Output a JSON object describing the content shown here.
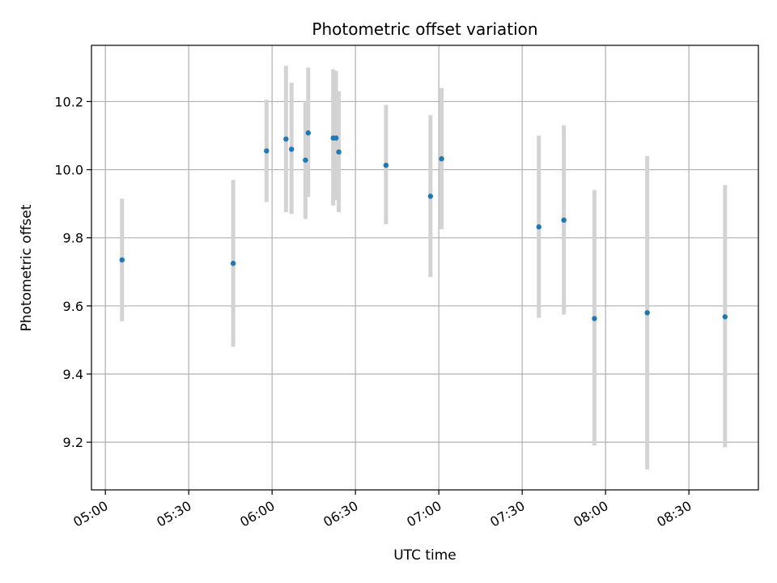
{
  "chart_data": {
    "type": "scatter",
    "title": "Photometric offset variation",
    "xlabel": "UTC time",
    "ylabel": "Photometric offset",
    "x_unit": "UTC time (HH:MM)",
    "xlim": [
      "04:55",
      "08:55"
    ],
    "ylim": [
      9.06,
      10.365
    ],
    "grid": true,
    "x_ticks": [
      "05:00",
      "05:30",
      "06:00",
      "06:30",
      "07:00",
      "07:30",
      "08:00",
      "08:30"
    ],
    "y_ticks": [
      9.2,
      9.4,
      9.6,
      9.8,
      10.0,
      10.2
    ],
    "y_tick_labels": [
      "9.2",
      "9.4",
      "9.6",
      "9.8",
      "10.0",
      "10.2"
    ],
    "colors": {
      "point": "#1f77b4",
      "errorbar": "#d3d3d3",
      "grid": "#b0b0b0"
    },
    "points": [
      {
        "x": "05:06",
        "y": 9.735,
        "yerr_low": 9.555,
        "yerr_high": 9.915
      },
      {
        "x": "05:46",
        "y": 9.725,
        "yerr_low": 9.48,
        "yerr_high": 9.97
      },
      {
        "x": "05:58",
        "y": 10.055,
        "yerr_low": 9.905,
        "yerr_high": 10.205
      },
      {
        "x": "06:05",
        "y": 10.09,
        "yerr_low": 9.875,
        "yerr_high": 10.305
      },
      {
        "x": "06:07",
        "y": 10.06,
        "yerr_low": 9.87,
        "yerr_high": 10.255
      },
      {
        "x": "06:12",
        "y": 10.028,
        "yerr_low": 9.855,
        "yerr_high": 10.2
      },
      {
        "x": "06:13",
        "y": 10.108,
        "yerr_low": 9.92,
        "yerr_high": 10.3
      },
      {
        "x": "06:22",
        "y": 10.093,
        "yerr_low": 9.895,
        "yerr_high": 10.295
      },
      {
        "x": "06:23",
        "y": 10.093,
        "yerr_low": 9.91,
        "yerr_high": 10.29
      },
      {
        "x": "06:24",
        "y": 10.052,
        "yerr_low": 9.875,
        "yerr_high": 10.23
      },
      {
        "x": "06:41",
        "y": 10.013,
        "yerr_low": 9.84,
        "yerr_high": 10.19
      },
      {
        "x": "06:57",
        "y": 9.922,
        "yerr_low": 9.685,
        "yerr_high": 10.16
      },
      {
        "x": "07:01",
        "y": 10.032,
        "yerr_low": 9.825,
        "yerr_high": 10.24
      },
      {
        "x": "07:36",
        "y": 9.832,
        "yerr_low": 9.565,
        "yerr_high": 10.1
      },
      {
        "x": "07:45",
        "y": 9.852,
        "yerr_low": 9.575,
        "yerr_high": 10.13
      },
      {
        "x": "07:56",
        "y": 9.563,
        "yerr_low": 9.19,
        "yerr_high": 9.94
      },
      {
        "x": "08:15",
        "y": 9.58,
        "yerr_low": 9.12,
        "yerr_high": 10.04
      },
      {
        "x": "08:43",
        "y": 9.568,
        "yerr_low": 9.185,
        "yerr_high": 9.955
      }
    ]
  }
}
